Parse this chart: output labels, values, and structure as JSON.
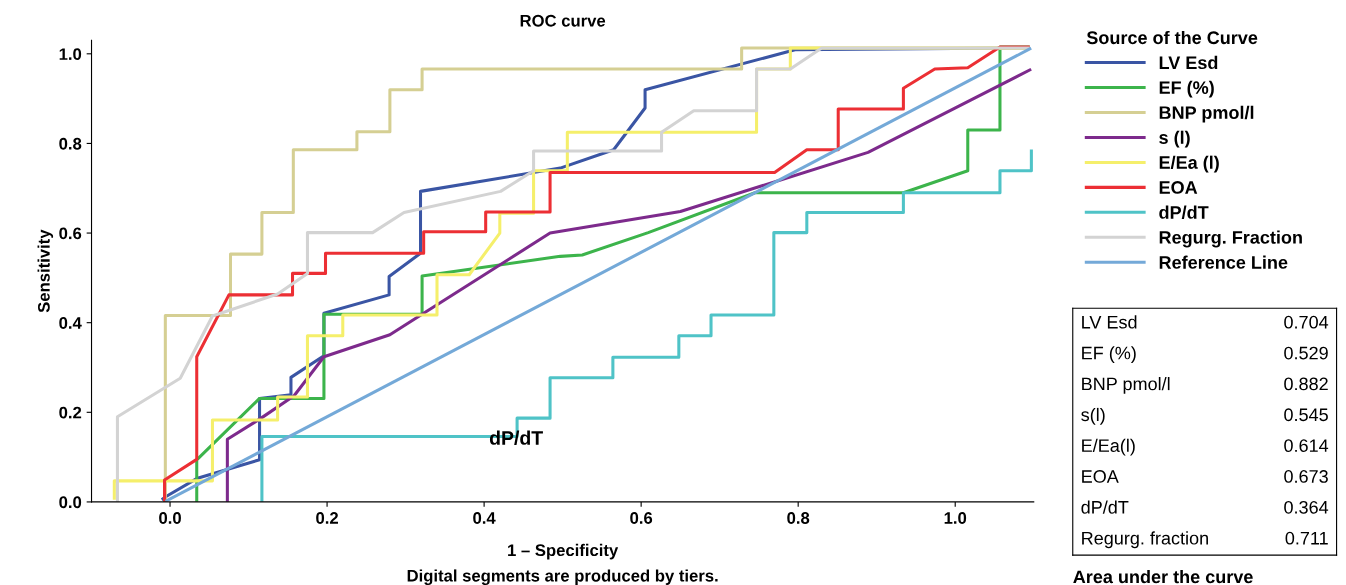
{
  "chart_data": [
    {
      "type": "line",
      "title": "ROC curve",
      "xlabel": "1 – Specificity",
      "ylabel": "Sensitivity",
      "legend_title": "Source of the Curve",
      "legend": "right",
      "grid": false,
      "marker": "none",
      "line_style": "solid",
      "xlim": [
        -0.1,
        1.1
      ],
      "ylim": [
        0,
        1.03
      ],
      "xticks": [
        {
          "value": 0,
          "label": "0.0"
        },
        0.2,
        0.4,
        0.6,
        0.8,
        {
          "value": 1,
          "label": "1.0"
        }
      ],
      "yticks": [
        {
          "value": 0,
          "label": "0.0"
        },
        0.2,
        0.4,
        0.6,
        0.8,
        {
          "value": 1,
          "label": "1.0"
        }
      ],
      "series": [
        {
          "name": "LV Esd",
          "color": "#3a55a4",
          "x": [
            -0.009,
            -0.005,
            0.035,
            0.114,
            0.114,
            0.154,
            0.154,
            0.196,
            0.196,
            0.279,
            0.279,
            0.319,
            0.319,
            0.497,
            0.565,
            0.605,
            0.605,
            0.796,
            1.093
          ],
          "values": [
            0.007,
            0.012,
            0.053,
            0.094,
            0.231,
            0.239,
            0.278,
            0.326,
            0.421,
            0.462,
            0.503,
            0.555,
            0.693,
            0.745,
            0.786,
            0.879,
            0.92,
            1.009,
            1.013
          ]
        },
        {
          "name": "EF (%)",
          "color": "#3cb44b",
          "x": [
            0.034,
            0.034,
            0.114,
            0.196,
            0.196,
            0.321,
            0.321,
            0.497,
            0.525,
            0.609,
            0.745,
            0.934,
            1.016,
            1.016,
            1.057,
            1.057,
            1.093
          ],
          "values": [
            0.004,
            0.094,
            0.231,
            0.231,
            0.419,
            0.419,
            0.504,
            0.548,
            0.551,
            0.601,
            0.69,
            0.69,
            0.739,
            0.83,
            0.83,
            1.015,
            1.015
          ]
        },
        {
          "name": "BNP pmol/l",
          "color": "#d5cf93",
          "x": [
            -0.006,
            -0.006,
            0.077,
            0.077,
            0.117,
            0.117,
            0.157,
            0.157,
            0.238,
            0.238,
            0.28,
            0.28,
            0.321,
            0.321,
            0.728,
            0.728,
            1.093
          ],
          "values": [
            0.0,
            0.416,
            0.416,
            0.553,
            0.553,
            0.646,
            0.646,
            0.786,
            0.786,
            0.826,
            0.826,
            0.92,
            0.92,
            0.966,
            0.966,
            1.013,
            1.013
          ]
        },
        {
          "name": "s (l)",
          "color": "#7d2a8c",
          "x": [
            0.073,
            0.073,
            0.116,
            0.158,
            0.196,
            0.28,
            0.323,
            0.484,
            0.65,
            0.889,
            1.095
          ],
          "values": [
            0.004,
            0.14,
            0.187,
            0.237,
            0.324,
            0.373,
            0.421,
            0.6,
            0.648,
            0.78,
            0.964
          ]
        },
        {
          "name": "E/Ea (l)",
          "color": "#f5ef6b",
          "x": [
            -0.071,
            -0.071,
            0.054,
            0.054,
            0.137,
            0.137,
            0.175,
            0.175,
            0.22,
            0.22,
            0.34,
            0.34,
            0.381,
            0.42,
            0.42,
            0.463,
            0.463,
            0.506,
            0.506,
            0.747,
            0.747,
            0.79,
            0.79,
            1.093
          ],
          "values": [
            0.008,
            0.047,
            0.047,
            0.183,
            0.183,
            0.234,
            0.234,
            0.371,
            0.371,
            0.417,
            0.417,
            0.507,
            0.507,
            0.6,
            0.644,
            0.644,
            0.739,
            0.739,
            0.825,
            0.825,
            0.966,
            0.966,
            1.013,
            1.013
          ]
        },
        {
          "name": "EOA",
          "color": "#ec2f34",
          "x": [
            -0.007,
            -0.007,
            0.034,
            0.034,
            0.075,
            0.156,
            0.156,
            0.198,
            0.198,
            0.323,
            0.323,
            0.402,
            0.402,
            0.484,
            0.484,
            0.77,
            0.811,
            0.851,
            0.851,
            0.934,
            0.934,
            0.974,
            1.016,
            1.057,
            1.093
          ],
          "values": [
            0.004,
            0.049,
            0.095,
            0.324,
            0.462,
            0.462,
            0.51,
            0.51,
            0.555,
            0.555,
            0.603,
            0.603,
            0.647,
            0.647,
            0.735,
            0.735,
            0.786,
            0.786,
            0.877,
            0.877,
            0.923,
            0.966,
            0.969,
            1.015,
            1.015
          ]
        },
        {
          "name": "dP/dT",
          "color": "#4fc3c7",
          "x": [
            0.117,
            0.117,
            0.442,
            0.442,
            0.484,
            0.484,
            0.564,
            0.564,
            0.648,
            0.648,
            0.689,
            0.689,
            0.769,
            0.769,
            0.811,
            0.811,
            0.934,
            0.934,
            1.057,
            1.057,
            1.097,
            1.097
          ],
          "values": [
            0.004,
            0.146,
            0.146,
            0.187,
            0.187,
            0.277,
            0.277,
            0.323,
            0.323,
            0.371,
            0.371,
            0.417,
            0.417,
            0.601,
            0.601,
            0.646,
            0.646,
            0.69,
            0.69,
            0.739,
            0.739,
            0.783
          ]
        },
        {
          "name": "Regurg. Fraction",
          "color": "#d3d3d3",
          "x": [
            -0.067,
            -0.067,
            0.013,
            0.054,
            0.137,
            0.175,
            0.175,
            0.258,
            0.298,
            0.421,
            0.463,
            0.463,
            0.626,
            0.626,
            0.667,
            0.747,
            0.747,
            0.79,
            0.83,
            1.093
          ],
          "values": [
            0.004,
            0.19,
            0.276,
            0.415,
            0.464,
            0.51,
            0.601,
            0.601,
            0.646,
            0.693,
            0.739,
            0.783,
            0.783,
            0.825,
            0.873,
            0.873,
            0.966,
            0.966,
            1.013,
            1.013
          ]
        },
        {
          "name": "Reference Line",
          "color": "#74a9d8",
          "x": [
            -0.004,
            1.095
          ],
          "values": [
            0.003,
            1.011
          ]
        }
      ],
      "annotations": [
        "dP/dT",
        "Digital segments are produced by tiers."
      ]
    },
    {
      "type": "other",
      "categories": [
        "LV Esd",
        "EF (%)",
        "BNP pmol/l",
        "s(l)",
        "E/Ea(l)",
        "EOA",
        "dP/dT",
        "Regurg. fraction"
      ],
      "values": [
        0.704,
        0.529,
        0.882,
        0.545,
        0.614,
        0.673,
        0.364,
        0.711
      ],
      "data_labels": true,
      "annotations": [
        "Area under the curve"
      ]
    }
  ]
}
